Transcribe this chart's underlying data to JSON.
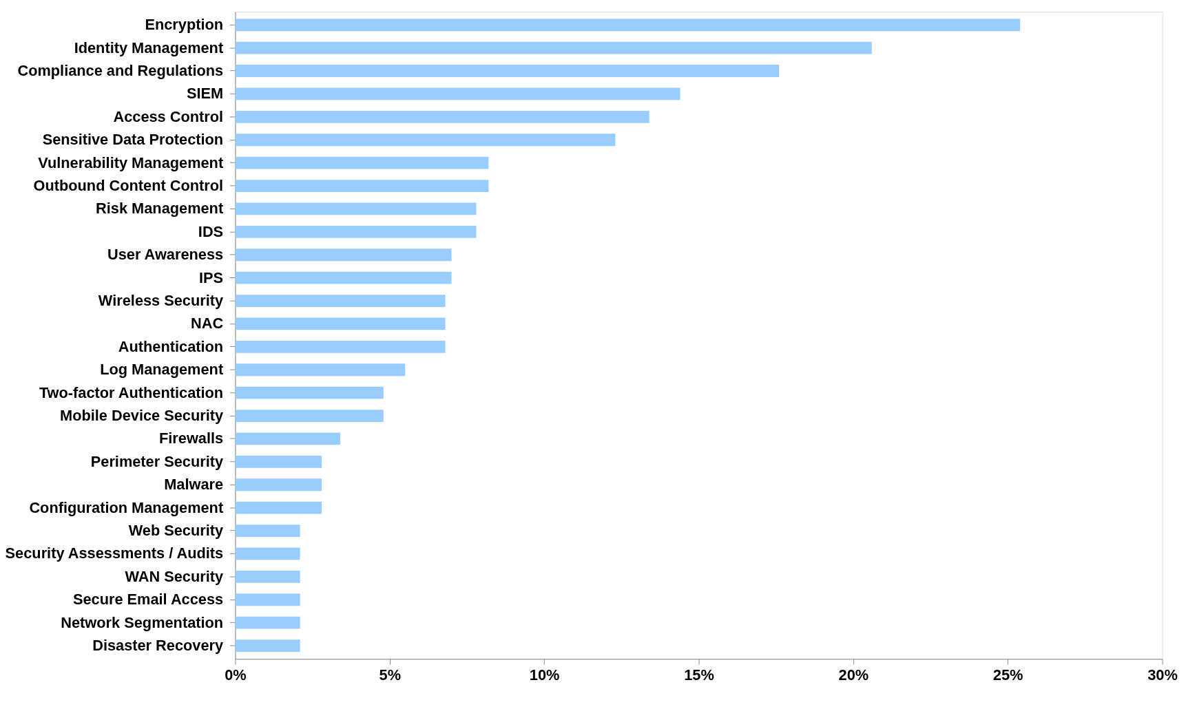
{
  "chart_data": {
    "type": "bar",
    "orientation": "horizontal",
    "color": "#99ccff",
    "categories": [
      "Encryption",
      "Identity Management",
      "Compliance and Regulations",
      "SIEM",
      "Access Control",
      "Sensitive Data Protection",
      "Vulnerability Management",
      "Outbound Content Control",
      "Risk Management",
      "IDS",
      "User Awareness",
      "IPS",
      "Wireless Security",
      "NAC",
      "Authentication",
      "Log Management",
      "Two-factor Authentication",
      "Mobile Device Security",
      "Firewalls",
      "Perimeter Security",
      "Malware",
      "Configuration Management",
      "Web Security",
      "Security Assessments / Audits",
      "WAN Security",
      "Secure Email Access",
      "Network Segmentation",
      "Disaster Recovery"
    ],
    "values": [
      25.4,
      20.6,
      17.6,
      14.4,
      13.4,
      12.3,
      8.2,
      8.2,
      7.8,
      7.8,
      7.0,
      7.0,
      6.8,
      6.8,
      6.8,
      5.5,
      4.8,
      4.8,
      3.4,
      2.8,
      2.8,
      2.8,
      2.1,
      2.1,
      2.1,
      2.1,
      2.1,
      2.1
    ],
    "xlim": [
      0,
      30
    ],
    "xticks": [
      {
        "value": 0,
        "label": "0%"
      },
      {
        "value": 5,
        "label": "5%"
      },
      {
        "value": 10,
        "label": "10%"
      },
      {
        "value": 15,
        "label": "15%"
      },
      {
        "value": 20,
        "label": "20%"
      },
      {
        "value": 25,
        "label": "25%"
      },
      {
        "value": 30,
        "label": "30%"
      }
    ],
    "grid": false
  }
}
